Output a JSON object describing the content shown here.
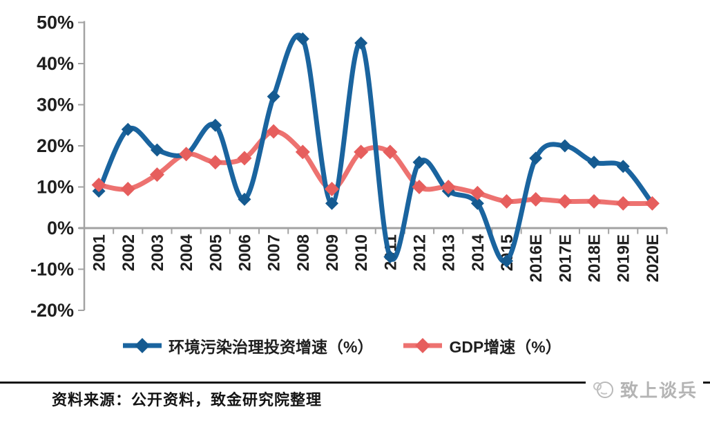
{
  "chart_data": {
    "type": "line",
    "smooth": true,
    "grid": "off",
    "legend_position": "bottom",
    "categories": [
      "2001",
      "2002",
      "2003",
      "2004",
      "2005",
      "2006",
      "2007",
      "2008",
      "2009",
      "2010",
      "2011",
      "2012",
      "2013",
      "2014",
      "2015",
      "2016E",
      "2017E",
      "2018E",
      "2019E",
      "2020E"
    ],
    "series": [
      {
        "name": "环境污染治理投资增速（%）",
        "values": [
          9,
          24,
          19,
          18,
          25,
          7,
          32,
          46,
          6,
          45,
          -7,
          16,
          9,
          6,
          -8,
          17,
          20,
          16,
          15,
          6
        ],
        "line_color": "#1a649f",
        "marker_color": "#155a90",
        "marker": "diamond"
      },
      {
        "name": "GDP增速（%）",
        "values": [
          10.5,
          9.5,
          13,
          18,
          16,
          17,
          23.5,
          18.5,
          9.5,
          18.5,
          18.5,
          10,
          10,
          8.5,
          6.5,
          7,
          6.5,
          6.5,
          6,
          6
        ],
        "line_color": "#ed7270",
        "marker_color": "#e65e5d",
        "marker": "diamond"
      }
    ],
    "ylim": [
      -20,
      50
    ],
    "y_ticks": [
      {
        "label": "50%",
        "value": 50
      },
      {
        "label": "40%",
        "value": 40
      },
      {
        "label": "30%",
        "value": 30
      },
      {
        "label": "20%",
        "value": 20
      },
      {
        "label": "10%",
        "value": 10
      },
      {
        "label": "0%",
        "value": 0
      },
      {
        "label": "-10%",
        "value": -10
      },
      {
        "label": "-20%",
        "value": -20
      }
    ],
    "xlabel": "",
    "ylabel": ""
  },
  "colors": {
    "axis": "#a2a2a2",
    "text": "#1f1f1f",
    "footer_rule": "#141414",
    "watermark": "#b4b4b4"
  },
  "footer": {
    "source_label": "资料来源：公开资料，致金研究院整理"
  },
  "watermark": {
    "text": "致上谈兵"
  }
}
